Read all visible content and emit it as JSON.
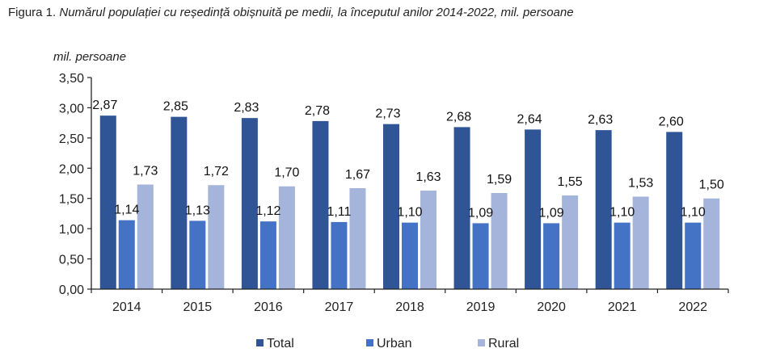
{
  "title": {
    "prefix": "Figura 1.",
    "text": " Numărul populației cu reședință obișnuită pe medii, la începutul anilor 2014-2022, mil. persoane"
  },
  "chart_data": {
    "type": "bar",
    "title": "Figura 1. Numărul populației cu reședință obișnuită pe medii, la începutul anilor 2014-2022, mil. persoane",
    "xlabel": "",
    "ylabel": "mil. persoane",
    "ylim": [
      0,
      3.5
    ],
    "yticks": [
      0,
      0.5,
      1.0,
      1.5,
      2.0,
      2.5,
      3.0,
      3.5
    ],
    "ytick_labels": [
      "0,00",
      "0,50",
      "1,00",
      "1,50",
      "2,00",
      "2,50",
      "3,00",
      "3,50"
    ],
    "grid": false,
    "legend_position": "bottom",
    "categories": [
      "2014",
      "2015",
      "2016",
      "2017",
      "2018",
      "2019",
      "2020",
      "2021",
      "2022"
    ],
    "series": [
      {
        "name": "Total",
        "color": "#2F5597",
        "values": [
          2.87,
          2.85,
          2.83,
          2.78,
          2.73,
          2.68,
          2.64,
          2.63,
          2.6
        ],
        "labels": [
          "2,87",
          "2,85",
          "2,83",
          "2,78",
          "2,73",
          "2,68",
          "2,64",
          "2,63",
          "2,60"
        ]
      },
      {
        "name": "Urban",
        "color": "#4472C4",
        "values": [
          1.14,
          1.13,
          1.12,
          1.11,
          1.1,
          1.09,
          1.09,
          1.1,
          1.1
        ],
        "labels": [
          "1,14",
          "1,13",
          "1,12",
          "1,11",
          "1,10",
          "1,09",
          "1,09",
          "1,10",
          "1,10"
        ]
      },
      {
        "name": "Rural",
        "color": "#A5B4DA",
        "values": [
          1.73,
          1.72,
          1.7,
          1.67,
          1.63,
          1.59,
          1.55,
          1.53,
          1.5
        ],
        "labels": [
          "1,73",
          "1,72",
          "1,70",
          "1,67",
          "1,63",
          "1,59",
          "1,55",
          "1,53",
          "1,50"
        ]
      }
    ]
  }
}
